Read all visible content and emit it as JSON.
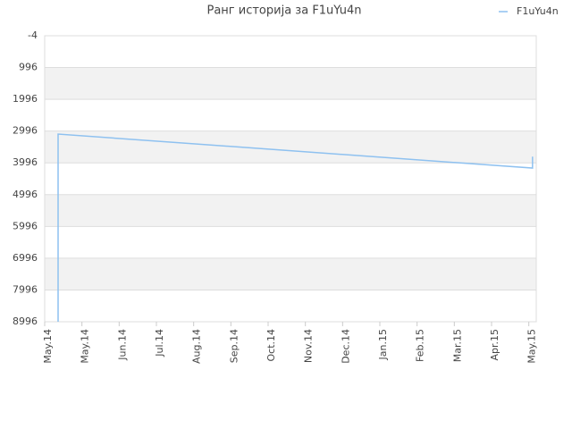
{
  "chart_data": {
    "type": "line",
    "title": "Ранг историја за F1uYu4n",
    "series": [
      {
        "name": "F1uYu4n",
        "color": "#8ec1f0",
        "x": [
          0.36,
          0.36,
          13.1,
          13.1
        ],
        "values": [
          8996,
          3090,
          4160,
          3800
        ]
      }
    ],
    "xlim": [
      0,
      13.2
    ],
    "xticks": [
      {
        "value": 0,
        "label": "May.14"
      },
      {
        "value": 1,
        "label": "May.14"
      },
      {
        "value": 2,
        "label": "Jun.14"
      },
      {
        "value": 3,
        "label": "Jul.14"
      },
      {
        "value": 4,
        "label": "Aug.14"
      },
      {
        "value": 5,
        "label": "Sep.14"
      },
      {
        "value": 6,
        "label": "Oct.14"
      },
      {
        "value": 7,
        "label": "Nov.14"
      },
      {
        "value": 8,
        "label": "Dec.14"
      },
      {
        "value": 9,
        "label": "Jan.15"
      },
      {
        "value": 10,
        "label": "Feb.15"
      },
      {
        "value": 11,
        "label": "Mar.15"
      },
      {
        "value": 12,
        "label": "Apr.15"
      },
      {
        "value": 13,
        "label": "May.15"
      }
    ],
    "ylim": [
      -4,
      8996
    ],
    "yticks": [
      -4,
      996,
      1996,
      2996,
      3996,
      4996,
      5996,
      6996,
      7996,
      8996
    ],
    "y_inverted": true,
    "grid": true,
    "legend": "top-right"
  }
}
